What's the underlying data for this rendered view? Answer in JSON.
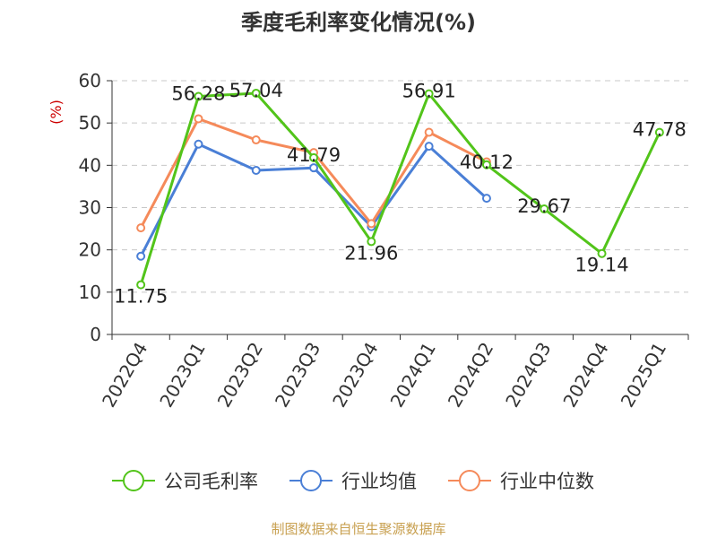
{
  "chart_data": {
    "type": "line",
    "title": "季度毛利率变化情况(%)",
    "ylabel": "(%)",
    "xlabel": "",
    "ylim": [
      0,
      60
    ],
    "yticks": [
      0,
      10,
      20,
      30,
      40,
      50,
      60
    ],
    "grid": "horizontal-dashed",
    "legend_position": "bottom",
    "categories": [
      "2022Q4",
      "2023Q1",
      "2023Q2",
      "2023Q3",
      "2023Q4",
      "2024Q1",
      "2024Q2",
      "2024Q3",
      "2024Q4",
      "2025Q1"
    ],
    "series": [
      {
        "name": "公司毛利率",
        "color": "#52c41a",
        "labels": true,
        "values": [
          11.75,
          56.28,
          57.04,
          41.79,
          21.96,
          56.91,
          40.12,
          29.67,
          19.14,
          47.78
        ]
      },
      {
        "name": "行业均值",
        "color": "#4a7fd6",
        "labels": false,
        "values": [
          18.5,
          45.0,
          38.8,
          39.4,
          25.5,
          44.5,
          32.2,
          null,
          null,
          null
        ]
      },
      {
        "name": "行业中位数",
        "color": "#f58a5a",
        "labels": false,
        "values": [
          25.2,
          51.0,
          46.0,
          43.0,
          26.2,
          47.8,
          40.8,
          null,
          null,
          null
        ]
      }
    ]
  },
  "source": "制图数据来自恒生聚源数据库"
}
